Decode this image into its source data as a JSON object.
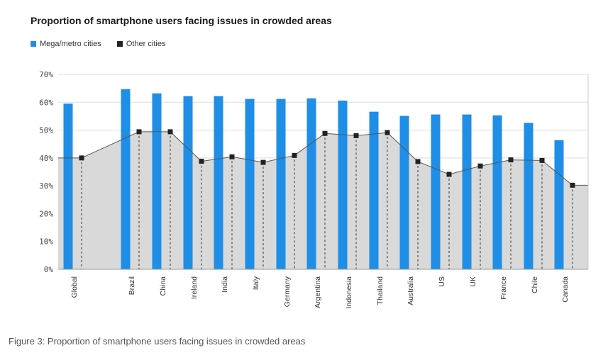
{
  "title": "Proportion of smartphone users facing issues in crowded areas",
  "caption": "Figure 3: Proportion of smartphone users facing issues in crowded areas",
  "colors": {
    "mega": "#1f8ee6",
    "other": "#222222",
    "area": "#d9d9d9",
    "grid": "#dddddd"
  },
  "chart_data": {
    "type": "bar",
    "title": "Proportion of smartphone users facing issues in crowded areas",
    "xlabel": "",
    "ylabel": "",
    "ylim": [
      0,
      70
    ],
    "yticks": [
      "0%",
      "10%",
      "20%",
      "30%",
      "40%",
      "50%",
      "60%",
      "70%"
    ],
    "grid": true,
    "legend_position": "top-left",
    "categories": [
      "Global",
      "Brazil",
      "China",
      "Ireland",
      "India",
      "Italy",
      "Germany",
      "Argentina",
      "Indonesia",
      "Thailand",
      "Australia",
      "US",
      "UK",
      "France",
      "Chile",
      "Canada"
    ],
    "series": [
      {
        "name": "Mega/metro cities",
        "type": "bar",
        "color": "#1f8ee6",
        "values": [
          59.5,
          64.7,
          63.2,
          62.2,
          62.2,
          61.2,
          61.2,
          61.4,
          60.6,
          56.6,
          55.1,
          55.6,
          55.6,
          55.3,
          52.6,
          46.4
        ]
      },
      {
        "name": "Other cities",
        "type": "line-area",
        "color": "#222222",
        "values": [
          40.0,
          49.4,
          49.4,
          38.8,
          40.4,
          38.4,
          40.9,
          48.8,
          48.0,
          49.1,
          38.7,
          34.1,
          37.1,
          39.3,
          39.1,
          30.2
        ]
      }
    ]
  }
}
